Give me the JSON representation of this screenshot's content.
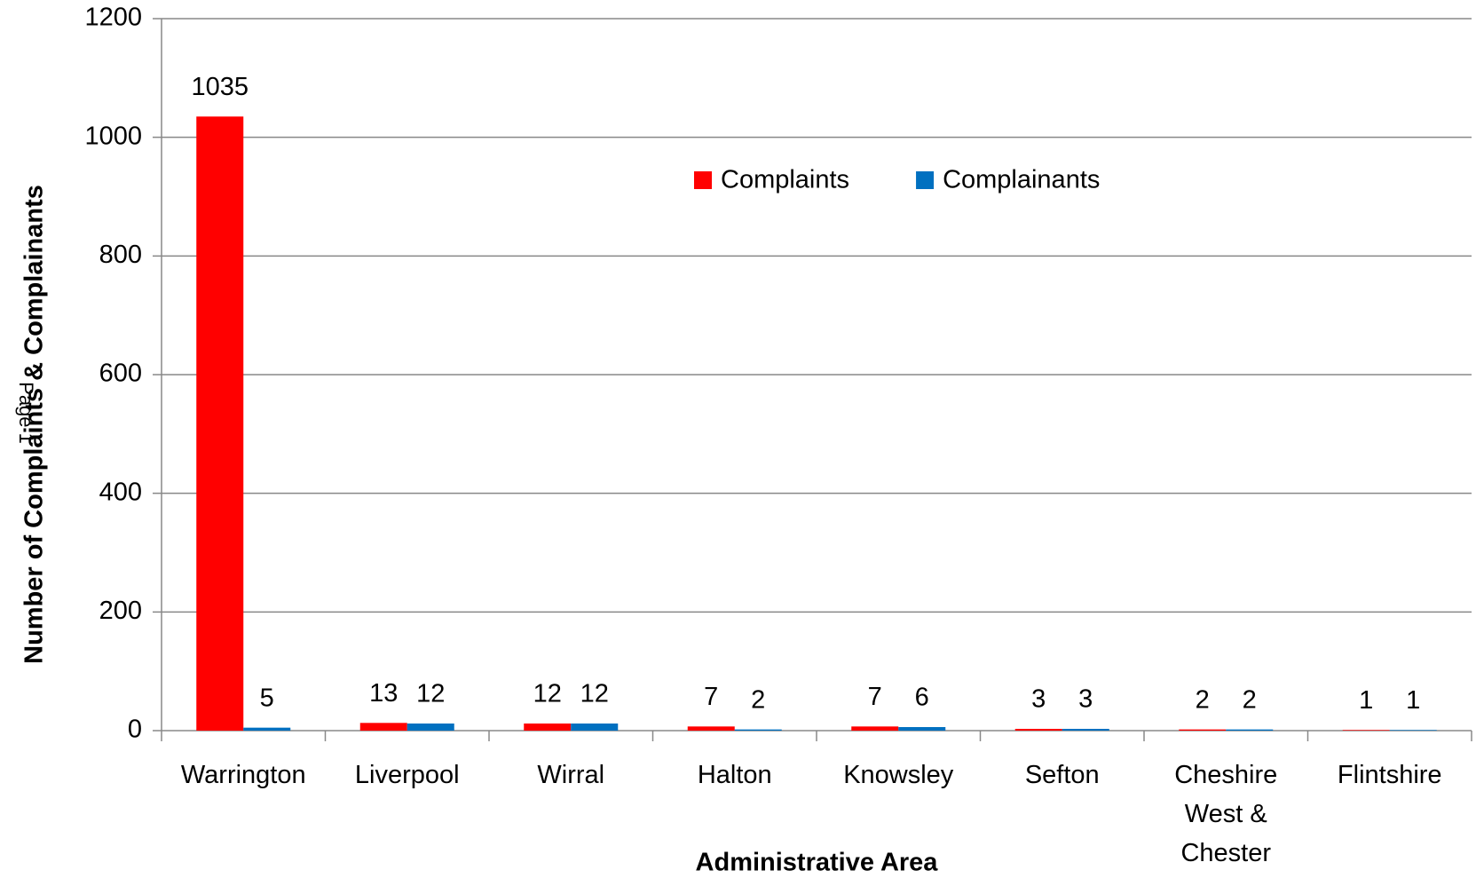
{
  "chart_data": {
    "type": "bar",
    "x_label": "Administrative Area",
    "y_label": "Number of Complaints & Complainants",
    "annotation": "Page 1",
    "categories": [
      "Warrington",
      "Liverpool",
      "Wirral",
      "Halton",
      "Knowsley",
      "Sefton",
      "Cheshire West & Chester",
      "Flintshire"
    ],
    "series": [
      {
        "name": "Complaints",
        "color": "#ff0000",
        "values": [
          1035,
          13,
          12,
          7,
          7,
          3,
          2,
          1
        ]
      },
      {
        "name": "Complainants",
        "color": "#0070c0",
        "values": [
          5,
          12,
          12,
          2,
          6,
          3,
          2,
          1
        ]
      }
    ],
    "ylim": [
      0,
      1200
    ],
    "yticks": [
      0,
      200,
      400,
      600,
      800,
      1000,
      1200
    ],
    "grid": true,
    "legend": "top"
  }
}
